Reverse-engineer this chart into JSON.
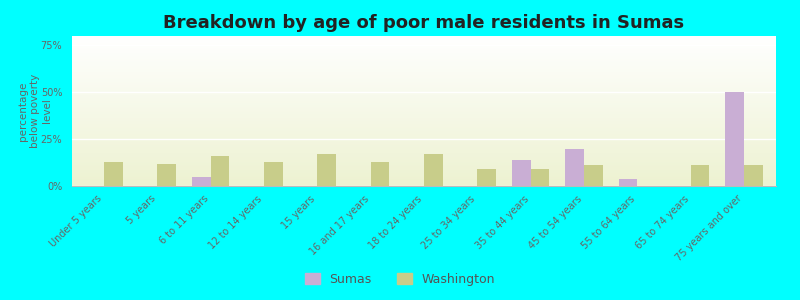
{
  "title": "Breakdown by age of poor male residents in Sumas",
  "ylabel": "percentage\nbelow poverty\nlevel",
  "categories": [
    "Under 5 years",
    "5 years",
    "6 to 11 years",
    "12 to 14 years",
    "15 years",
    "16 and 17 years",
    "18 to 24 years",
    "25 to 34 years",
    "35 to 44 years",
    "45 to 54 years",
    "55 to 64 years",
    "65 to 74 years",
    "75 years and over"
  ],
  "sumas_values": [
    0,
    0,
    5,
    0,
    0,
    0,
    0,
    0,
    14,
    20,
    4,
    0,
    50
  ],
  "washington_values": [
    13,
    12,
    16,
    13,
    17,
    13,
    17,
    9,
    9,
    11,
    0,
    11,
    11
  ],
  "sumas_color": "#c9aed4",
  "washington_color": "#c8cd8a",
  "outer_bg": "#00ffff",
  "ylim": [
    0,
    80
  ],
  "yticks": [
    0,
    25,
    50,
    75
  ],
  "ytick_labels": [
    "0%",
    "25%",
    "50%",
    "75%"
  ],
  "bar_width": 0.35,
  "legend_sumas": "Sumas",
  "legend_washington": "Washington",
  "title_fontsize": 13,
  "axis_label_fontsize": 7.5,
  "tick_fontsize": 7,
  "legend_fontsize": 9
}
